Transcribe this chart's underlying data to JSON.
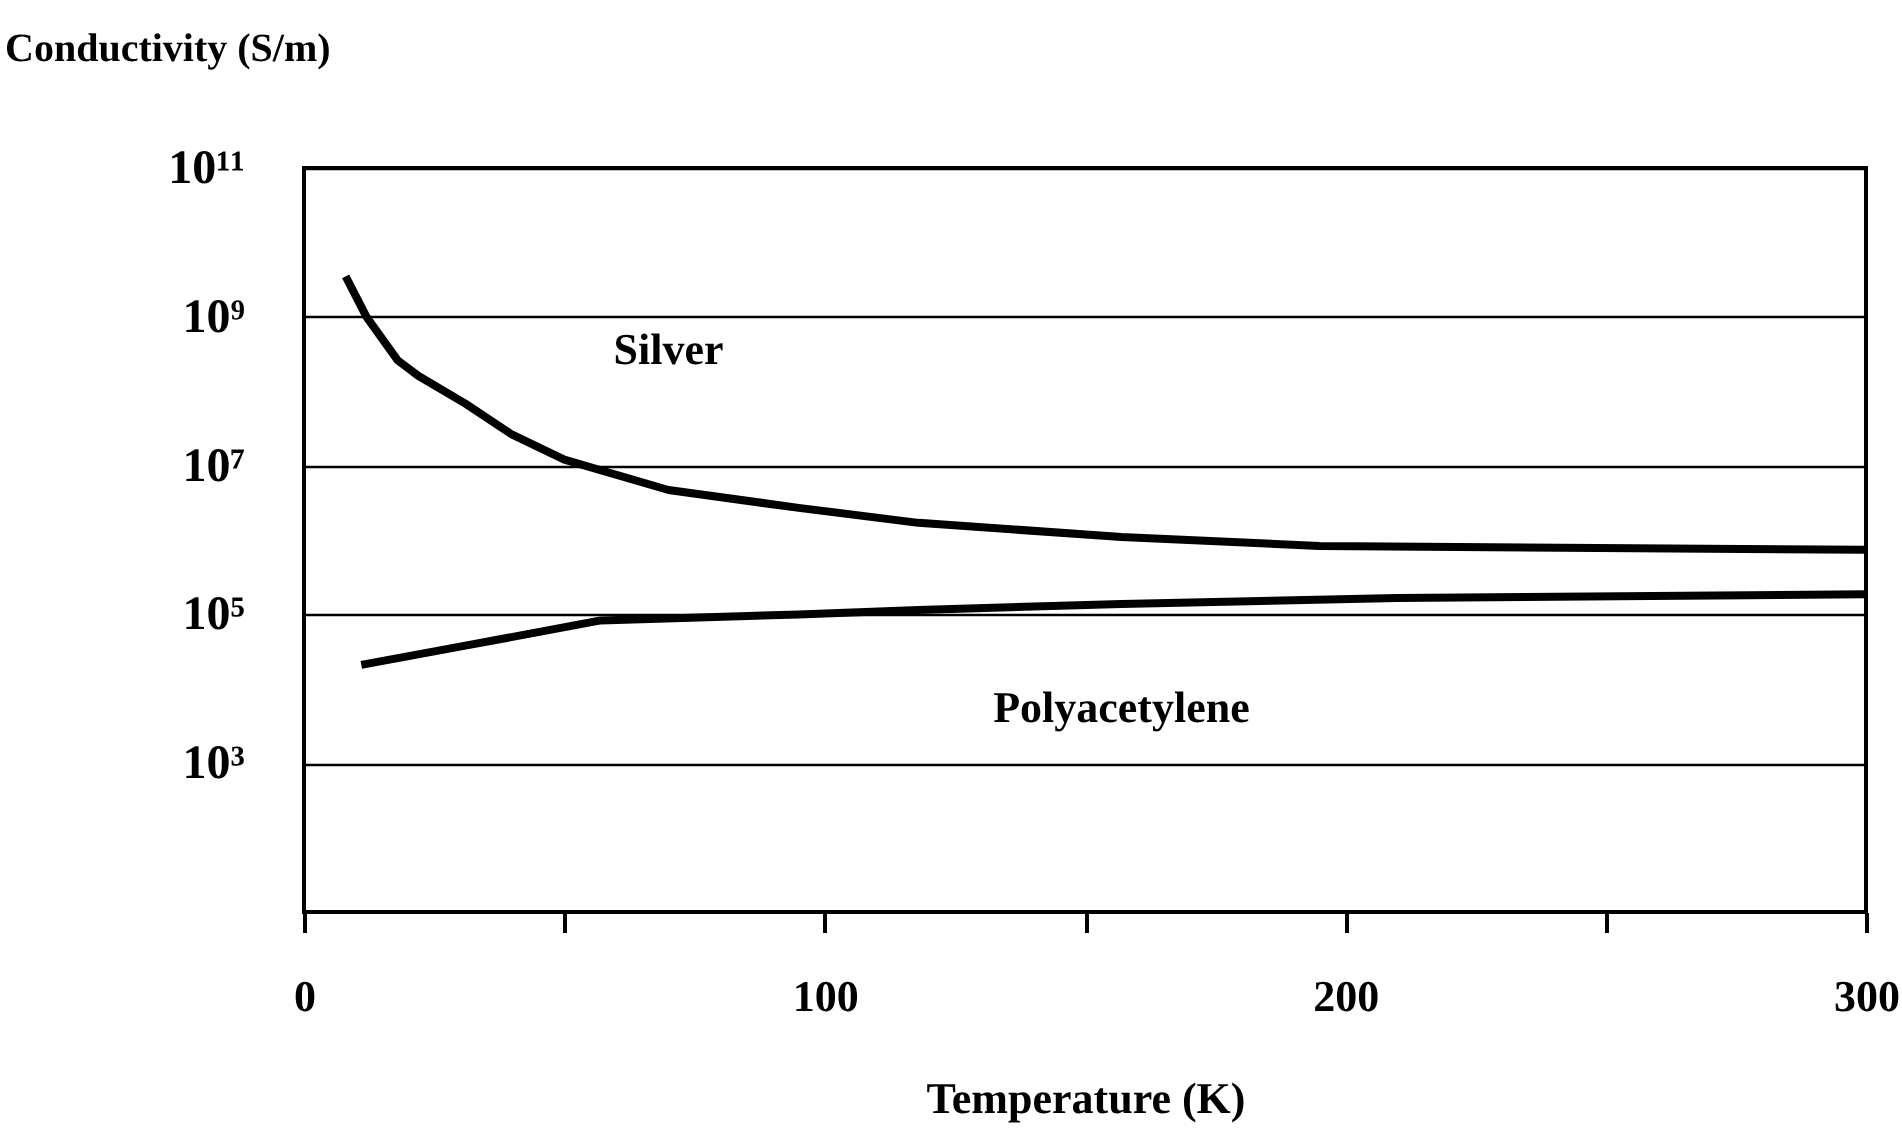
{
  "chart_data": {
    "type": "line",
    "xlabel": "Temperature (K)",
    "ylabel": "Conductivity (S/m)",
    "log": "y",
    "grid": "y",
    "marker": "none",
    "line_style": "solid",
    "xlim": [
      0,
      300
    ],
    "xticks": [
      0,
      {
        "value": 50,
        "label": null
      },
      100,
      {
        "value": 150,
        "label": null
      },
      200,
      {
        "value": 250,
        "label": null
      },
      300
    ],
    "ylim": [
      10,
      100000000000
    ],
    "yticks": [
      {
        "value": 1000,
        "label": "10³"
      },
      {
        "value": 100000,
        "label": "10⁵"
      },
      {
        "value": 10000000,
        "label": "10⁷"
      },
      {
        "value": 1000000000,
        "label": "10⁹"
      },
      {
        "value": 100000000000,
        "label": "10¹¹"
      }
    ],
    "series": [
      {
        "name": "Silver",
        "color": "#000000",
        "x": [
          8,
          12,
          18,
          22,
          31,
          40,
          50,
          70,
          95,
          118,
          157,
          195,
          300
        ],
        "values": [
          3500000000,
          1000000000,
          260000000,
          160000000,
          68000000,
          26000000,
          12000000,
          4700000,
          2700000,
          1700000,
          1100000,
          830000,
          740000
        ]
      },
      {
        "name": "Polyacetylene",
        "color": "#000000",
        "x": [
          11,
          31,
          57,
          95,
          118,
          157,
          210,
          300
        ],
        "values": [
          21000,
          38000,
          83000,
          100000,
          115000,
          138000,
          166000,
          186000
        ]
      }
    ]
  }
}
